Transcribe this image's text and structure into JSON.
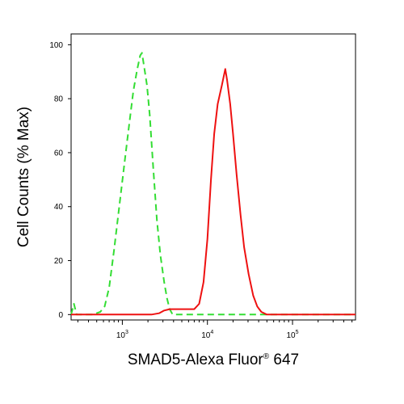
{
  "chart_data": {
    "type": "line",
    "title": "",
    "xlabel": "SMAD5-Alexa Fluor",
    "xlabel_mark": "®",
    "xlabel_suffix": " 647",
    "ylabel": "Cell Counts (% Max)",
    "xscale": "log",
    "xlim": [
      250,
      550000
    ],
    "ylim": [
      -2,
      104
    ],
    "grid": false,
    "legend": "none",
    "x_ticks": [
      {
        "base": "10",
        "exp": "3",
        "value": 1000
      },
      {
        "base": "10",
        "exp": "4",
        "value": 10000
      },
      {
        "base": "10",
        "exp": "5",
        "value": 100000
      }
    ],
    "y_ticks": [
      {
        "label": "0",
        "value": 0
      },
      {
        "label": "20",
        "value": 20
      },
      {
        "label": "40",
        "value": 40
      },
      {
        "label": "60",
        "value": 60
      },
      {
        "label": "80",
        "value": 80
      },
      {
        "label": "100",
        "value": 100
      }
    ],
    "series": [
      {
        "color": "#33dd33",
        "line_style": "dashed",
        "points": [
          [
            250,
            0
          ],
          [
            270,
            4
          ],
          [
            290,
            0
          ],
          [
            450,
            0
          ],
          [
            550,
            1
          ],
          [
            620,
            3
          ],
          [
            700,
            10
          ],
          [
            800,
            24
          ],
          [
            920,
            40
          ],
          [
            1050,
            55
          ],
          [
            1200,
            70
          ],
          [
            1350,
            83
          ],
          [
            1500,
            91
          ],
          [
            1620,
            96
          ],
          [
            1700,
            97
          ],
          [
            1800,
            92
          ],
          [
            1950,
            85
          ],
          [
            2100,
            74
          ],
          [
            2300,
            55
          ],
          [
            2550,
            35
          ],
          [
            2800,
            22
          ],
          [
            3100,
            12
          ],
          [
            3350,
            6
          ],
          [
            3600,
            2
          ],
          [
            3900,
            0
          ],
          [
            550000,
            0
          ]
        ]
      },
      {
        "color": "#ee1111",
        "line_style": "solid",
        "points": [
          [
            250,
            0
          ],
          [
            2200,
            0
          ],
          [
            2700,
            0.5
          ],
          [
            3100,
            1.5
          ],
          [
            3600,
            2
          ],
          [
            5000,
            2
          ],
          [
            7000,
            2
          ],
          [
            8000,
            4
          ],
          [
            9000,
            12
          ],
          [
            10000,
            28
          ],
          [
            11000,
            50
          ],
          [
            12000,
            67
          ],
          [
            13200,
            78
          ],
          [
            14800,
            85
          ],
          [
            16200,
            91
          ],
          [
            17000,
            87
          ],
          [
            18500,
            78
          ],
          [
            20000,
            67
          ],
          [
            22000,
            52
          ],
          [
            24500,
            37
          ],
          [
            27000,
            25
          ],
          [
            30500,
            15
          ],
          [
            34500,
            7
          ],
          [
            38500,
            3
          ],
          [
            43000,
            1
          ],
          [
            50000,
            0
          ],
          [
            550000,
            0
          ]
        ]
      }
    ]
  }
}
